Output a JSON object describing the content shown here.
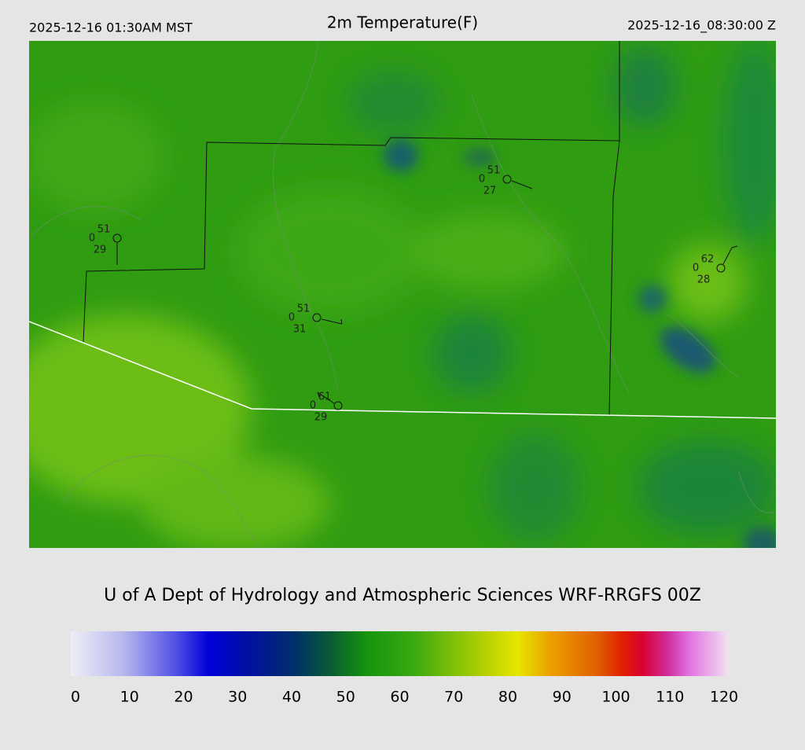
{
  "header": {
    "local_time": "2025-12-16 01:30AM MST",
    "title": "2m Temperature(F)",
    "utc_time": "2025-12-16_08:30:00 Z"
  },
  "stations": [
    {
      "temperature": 51,
      "precip": 0,
      "dewpoint": 29
    },
    {
      "temperature": 51,
      "precip": 0,
      "dewpoint": 31
    },
    {
      "temperature": 61,
      "precip": 0,
      "dewpoint": 29
    },
    {
      "temperature": 51,
      "precip": 0,
      "dewpoint": 27
    },
    {
      "temperature": 62,
      "precip": 0,
      "dewpoint": 28
    }
  ],
  "footer": {
    "credit": "U of A Dept of Hydrology and Atmospheric Sciences WRF-RRGFS 00Z"
  },
  "colorbar": {
    "ticks": [
      0,
      10,
      20,
      30,
      40,
      50,
      60,
      70,
      80,
      90,
      100,
      110,
      120
    ]
  }
}
